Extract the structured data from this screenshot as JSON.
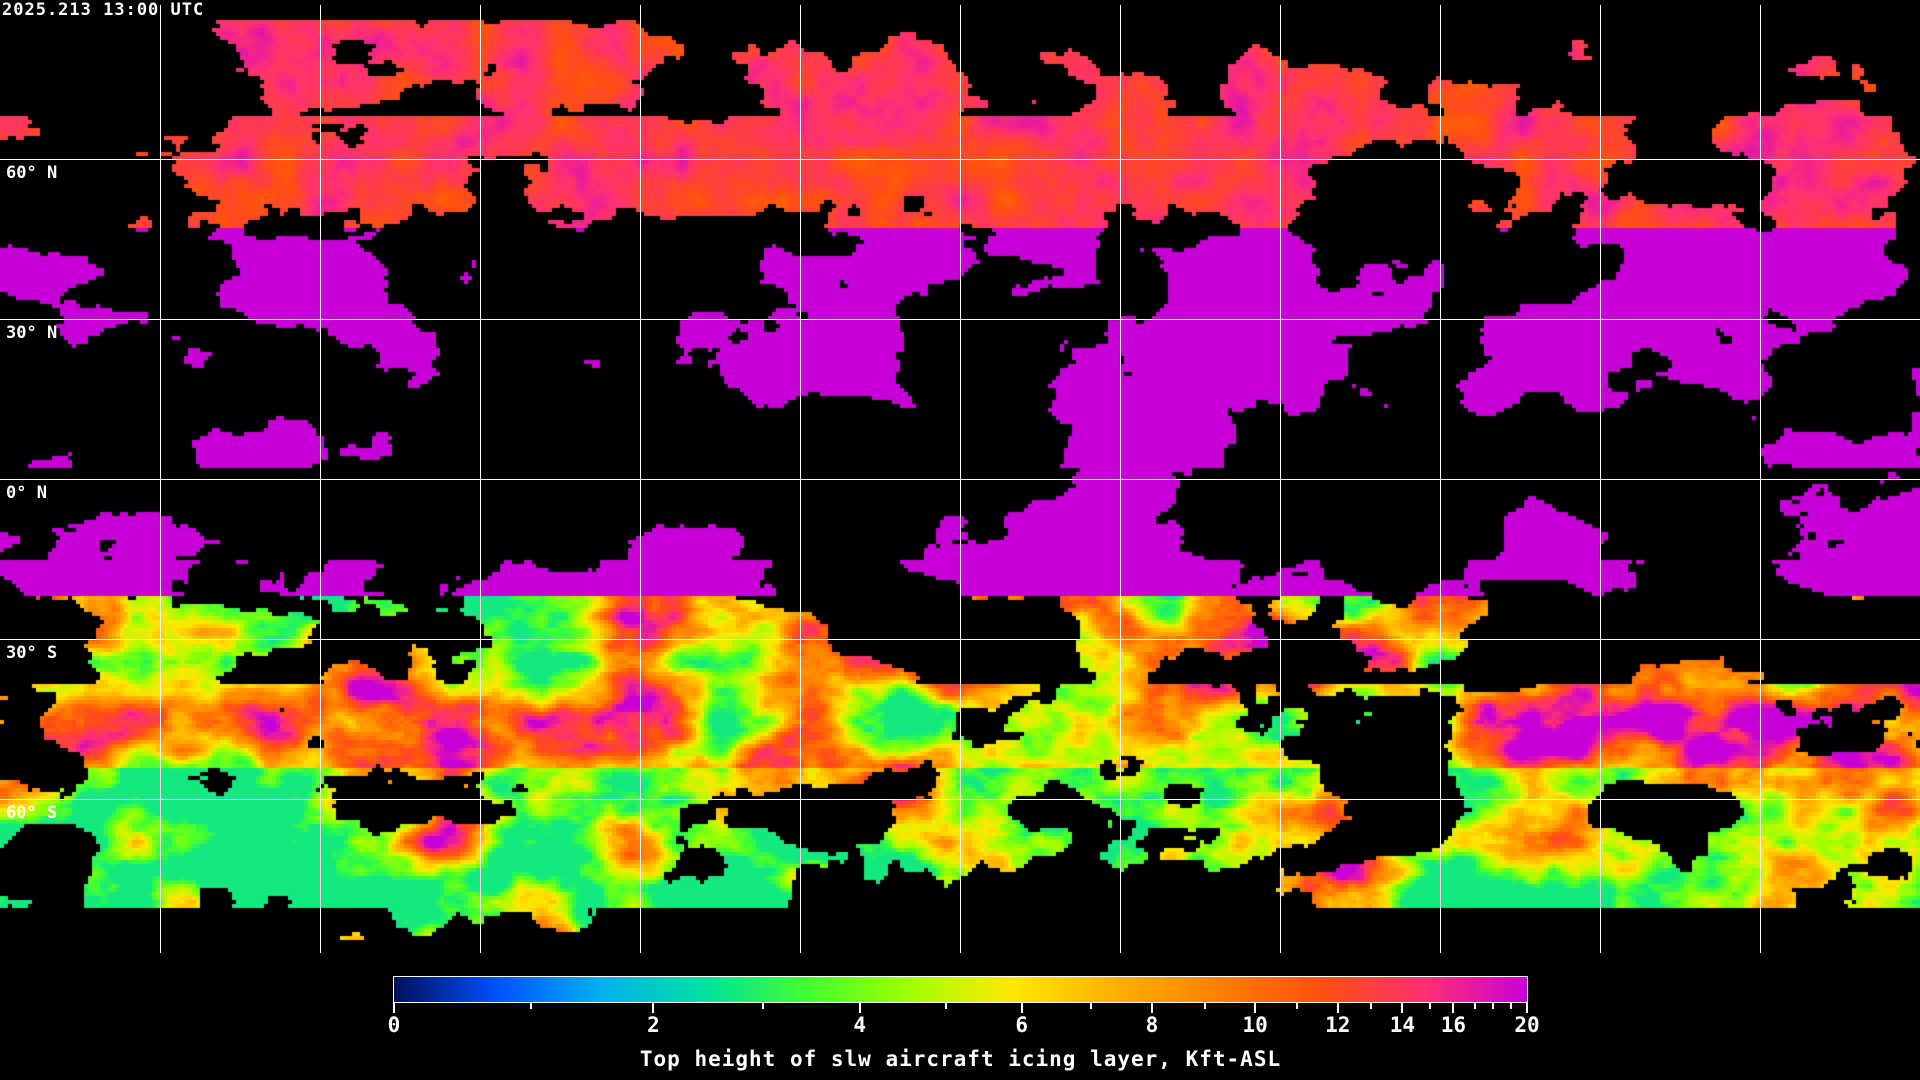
{
  "timestamp": "2025.213 13:00 UTC",
  "map": {
    "latitude_labels": [
      "60° N",
      "30° N",
      "0° N",
      "30° S",
      "60° S"
    ],
    "grid": "on",
    "coastlines_color": "#ffffff"
  },
  "colorbar": {
    "title": "Top height of slw aircraft icing layer, Kft-ASL",
    "range": [
      0,
      20
    ],
    "tick_labels": [
      "0",
      "2",
      "4",
      "6",
      "8",
      "10",
      "12",
      "14",
      "16",
      "20"
    ],
    "minor_ticks": [
      1,
      3,
      5,
      7,
      9,
      11,
      13,
      15,
      17,
      18,
      19
    ],
    "colors": [
      "#00105a",
      "#0050ff",
      "#00b0f0",
      "#00e0a0",
      "#40ff30",
      "#a0ff00",
      "#ffe800",
      "#ffb000",
      "#ff8000",
      "#ff5010",
      "#ff3070",
      "#c800d8"
    ]
  }
}
